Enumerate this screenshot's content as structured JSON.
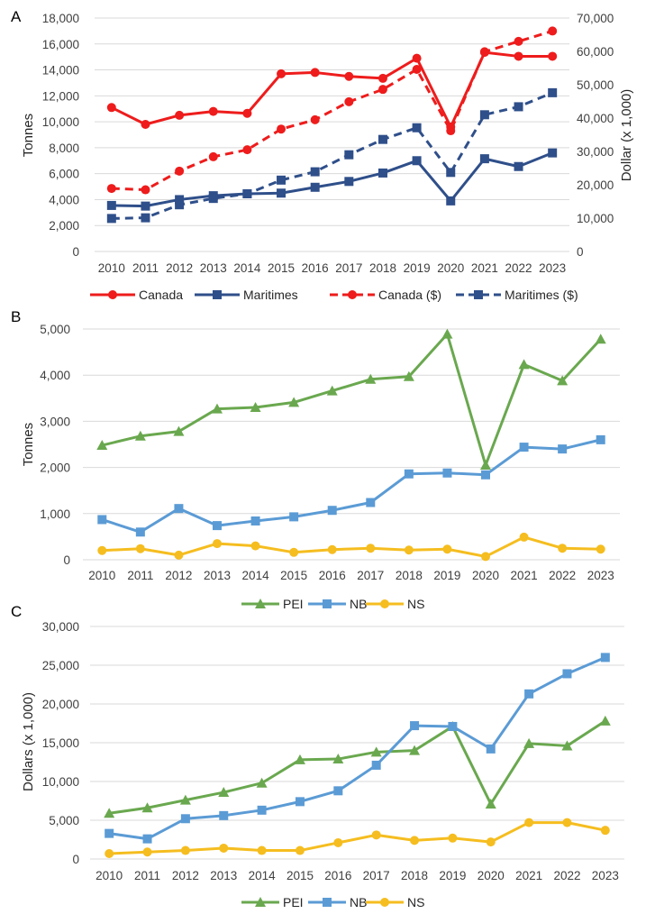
{
  "chart_data": [
    {
      "panel": "A",
      "type": "line",
      "title": "",
      "categories": [
        "2010",
        "2011",
        "2012",
        "2013",
        "2014",
        "2015",
        "2016",
        "2017",
        "2018",
        "2019",
        "2020",
        "2021",
        "2022",
        "2023"
      ],
      "ylabel": "Tonnes",
      "ylim": [
        0,
        18000
      ],
      "yticks": [
        "0",
        "2,000",
        "4,000",
        "6,000",
        "8,000",
        "10,000",
        "12,000",
        "14,000",
        "16,000",
        "18,000"
      ],
      "y2label": "Dollar (x 1,000)",
      "y2lim": [
        0,
        70000
      ],
      "y2ticks": [
        "0",
        "10,000",
        "20,000",
        "30,000",
        "40,000",
        "50,000",
        "60,000",
        "70,000"
      ],
      "grid": true,
      "legend_position": "bottom",
      "series": [
        {
          "name": "Canada",
          "axis": "left",
          "color": "#ee1c1c",
          "dash": false,
          "marker": "circle",
          "values": [
            11100,
            9800,
            10500,
            10800,
            10650,
            13700,
            13800,
            13500,
            13350,
            14900,
            9600,
            15350,
            15050,
            15050
          ]
        },
        {
          "name": "Maritimes",
          "axis": "left",
          "color": "#2f4f8a",
          "dash": false,
          "marker": "square",
          "values": [
            3550,
            3500,
            4000,
            4300,
            4450,
            4500,
            4950,
            5400,
            6050,
            7000,
            3900,
            7150,
            6550,
            7600
          ]
        },
        {
          "name": "Canada ($)",
          "axis": "right",
          "color": "#ee1c1c",
          "dash": true,
          "marker": "circle",
          "values": [
            18900,
            18500,
            24100,
            28400,
            30500,
            36700,
            39500,
            44900,
            48600,
            54600,
            36200,
            59900,
            63000,
            66100
          ]
        },
        {
          "name": "Maritimes ($)",
          "axis": "right",
          "color": "#2f4f8a",
          "dash": true,
          "marker": "square",
          "values": [
            9900,
            10100,
            14000,
            15900,
            17300,
            21400,
            23900,
            29000,
            33600,
            37100,
            23700,
            41000,
            43400,
            47600
          ]
        }
      ]
    },
    {
      "panel": "B",
      "type": "line",
      "title": "",
      "categories": [
        "2010",
        "2011",
        "2012",
        "2013",
        "2014",
        "2015",
        "2016",
        "2017",
        "2018",
        "2019",
        "2020",
        "2021",
        "2022",
        "2023"
      ],
      "ylabel": "Tonnes",
      "ylim": [
        0,
        5000
      ],
      "yticks": [
        "0",
        "1,000",
        "2,000",
        "3,000",
        "4,000",
        "5,000"
      ],
      "grid": true,
      "legend_position": "bottom",
      "series": [
        {
          "name": "PEI",
          "color": "#6aa84f",
          "marker": "triangle",
          "values": [
            2480,
            2680,
            2780,
            3270,
            3300,
            3410,
            3660,
            3910,
            3970,
            4890,
            2050,
            4230,
            3880,
            4780
          ]
        },
        {
          "name": "NB",
          "color": "#5b9bd5",
          "marker": "square",
          "values": [
            870,
            600,
            1110,
            740,
            840,
            930,
            1070,
            1240,
            1860,
            1880,
            1840,
            2440,
            2400,
            2600
          ]
        },
        {
          "name": "NS",
          "color": "#f5bd1f",
          "marker": "circle",
          "values": [
            200,
            240,
            100,
            350,
            300,
            160,
            220,
            250,
            210,
            230,
            70,
            490,
            250,
            230
          ]
        }
      ]
    },
    {
      "panel": "C",
      "type": "line",
      "title": "",
      "categories": [
        "2010",
        "2011",
        "2012",
        "2013",
        "2014",
        "2015",
        "2016",
        "2017",
        "2018",
        "2019",
        "2020",
        "2021",
        "2022",
        "2023"
      ],
      "ylabel": "Dollars (x 1,000)",
      "ylim": [
        0,
        30000
      ],
      "yticks": [
        "0",
        "5,000",
        "10,000",
        "15,000",
        "20,000",
        "25,000",
        "30,000"
      ],
      "grid": true,
      "legend_position": "bottom",
      "series": [
        {
          "name": "PEI",
          "color": "#6aa84f",
          "marker": "triangle",
          "values": [
            5900,
            6600,
            7600,
            8600,
            9800,
            12800,
            12900,
            13800,
            14000,
            17100,
            7100,
            14900,
            14600,
            17800
          ]
        },
        {
          "name": "NB",
          "color": "#5b9bd5",
          "marker": "square",
          "values": [
            3300,
            2600,
            5200,
            5600,
            6300,
            7400,
            8800,
            12100,
            17200,
            17100,
            14200,
            21300,
            23900,
            26000
          ]
        },
        {
          "name": "NS",
          "color": "#f5bd1f",
          "marker": "circle",
          "values": [
            700,
            900,
            1100,
            1400,
            1100,
            1100,
            2100,
            3100,
            2400,
            2700,
            2200,
            4700,
            4700,
            3700
          ]
        }
      ]
    }
  ]
}
